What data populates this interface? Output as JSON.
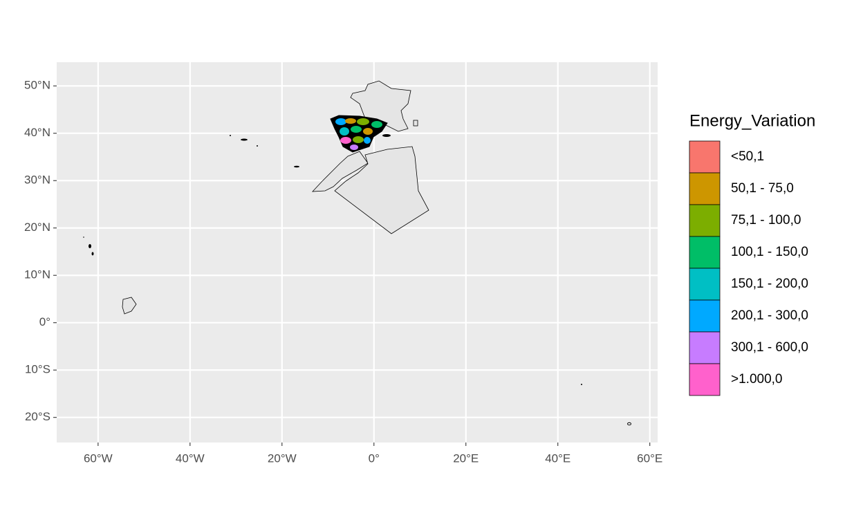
{
  "chart_data": {
    "type": "map",
    "xlim": [
      -69,
      61.7
    ],
    "ylim": [
      -25.3,
      55
    ],
    "xticks": [
      {
        "value": -60,
        "label": "60°W"
      },
      {
        "value": -40,
        "label": "40°W"
      },
      {
        "value": -20,
        "label": "20°W"
      },
      {
        "value": 0,
        "label": "0°"
      },
      {
        "value": 20,
        "label": "20°E"
      },
      {
        "value": 40,
        "label": "40°E"
      },
      {
        "value": 60,
        "label": "60°E"
      }
    ],
    "yticks": [
      {
        "value": 50,
        "label": "50°N"
      },
      {
        "value": 40,
        "label": "40°N"
      },
      {
        "value": 30,
        "label": "30°N"
      },
      {
        "value": 20,
        "label": "20°N"
      },
      {
        "value": 10,
        "label": "10°N"
      },
      {
        "value": 0,
        "label": "0°"
      },
      {
        "value": -10,
        "label": "10°S"
      },
      {
        "value": -20,
        "label": "20°S"
      }
    ],
    "grid": true,
    "legend": {
      "title": "Energy_Variation",
      "items": [
        {
          "label": "<50,1",
          "color": "#f8766d"
        },
        {
          "label": "50,1 - 75,0",
          "color": "#cd9600"
        },
        {
          "label": "75,1 - 100,0",
          "color": "#7cae00"
        },
        {
          "label": "100,1 - 150,0",
          "color": "#00be67"
        },
        {
          "label": "150,1 - 200,0",
          "color": "#00bfc4"
        },
        {
          "label": "200,1 - 300,0",
          "color": "#00a9ff"
        },
        {
          "label": "300,1 - 600,0",
          "color": "#c77cff"
        },
        {
          "label": ">1.000,0",
          "color": "#ff61cc"
        }
      ]
    }
  }
}
